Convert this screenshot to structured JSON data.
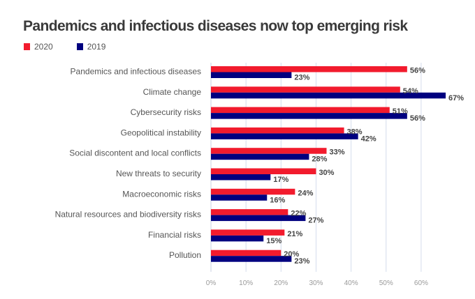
{
  "chart_data": {
    "type": "bar",
    "orientation": "horizontal",
    "title": "Pandemics and infectious diseases now top emerging risk",
    "xlabel": "",
    "ylabel": "",
    "xlim": [
      0,
      60
    ],
    "grid": true,
    "legend_position": "top-left",
    "categories": [
      "Pandemics and infectious diseases",
      "Climate change",
      "Cybersecurity risks",
      "Geopolitical instability",
      "Social discontent and local conflicts",
      "New threats to security",
      "Macroeconomic risks",
      "Natural resources and biodiversity risks",
      "Financial risks",
      "Pollution"
    ],
    "series": [
      {
        "name": "2020",
        "color": "#f21b2d",
        "values": [
          56,
          54,
          51,
          38,
          33,
          30,
          24,
          22,
          21,
          20
        ]
      },
      {
        "name": "2019",
        "color": "#00007f",
        "values": [
          23,
          67,
          56,
          42,
          28,
          17,
          16,
          27,
          15,
          23
        ]
      }
    ],
    "x_ticks": [
      "0%",
      "10%",
      "20%",
      "30%",
      "40%",
      "50%",
      "60%"
    ],
    "value_suffix": "%"
  }
}
